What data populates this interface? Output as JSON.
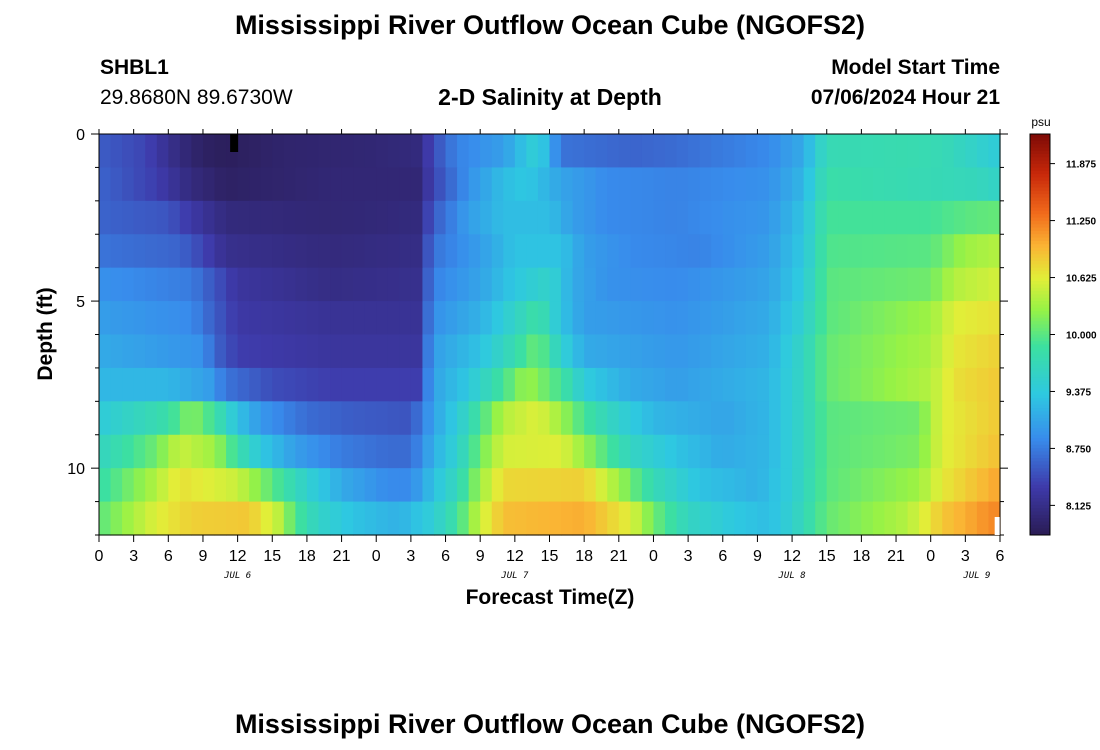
{
  "header": {
    "title": "Mississippi River Outflow Ocean Cube (NGOFS2)",
    "station_id": "SHBL1",
    "station_coords": "29.8680N  89.6730W",
    "subtitle": "2-D Salinity at Depth",
    "model_start_label": "Model Start Time",
    "model_start_value": "07/06/2024 Hour 21"
  },
  "footer": {
    "title": "Mississippi River Outflow Ocean Cube (NGOFS2)"
  },
  "chart_data": {
    "type": "heatmap",
    "title": "2-D Salinity at Depth",
    "xlabel": "Forecast Time(Z)",
    "ylabel": "Depth (ft)",
    "colorbar_unit": "psu",
    "colorbar_ticks": [
      "11.875",
      "11.250",
      "10.625",
      "10.000",
      "9.375",
      "8.750",
      "8.125"
    ],
    "clim": [
      7.8,
      12.2
    ],
    "x_hours_range": [
      0,
      78
    ],
    "x_tick_labels": [
      "0",
      "3",
      "6",
      "9",
      "12",
      "15",
      "18",
      "21",
      "0",
      "3",
      "6",
      "9",
      "12",
      "15",
      "18",
      "21",
      "0",
      "3",
      "6",
      "9",
      "12",
      "15",
      "18",
      "21",
      "0",
      "3",
      "6"
    ],
    "date_labels": [
      {
        "label": "JUL 6",
        "hour": 12
      },
      {
        "label": "JUL 7",
        "hour": 36
      },
      {
        "label": "JUL 8",
        "hour": 60
      },
      {
        "label": "JUL 9",
        "hour": 76
      }
    ],
    "y_range": [
      0,
      12
    ],
    "y_tick_labels": [
      {
        "value": 0,
        "label": "0"
      },
      {
        "value": 5,
        "label": "5"
      },
      {
        "value": 10,
        "label": "10"
      }
    ],
    "depth_rows": [
      0.5,
      1.5,
      2.5,
      3.5,
      4.5,
      5.5,
      6.5,
      7.5,
      8.5,
      9.5,
      10.5,
      11.5
    ],
    "salinity_profiles": [
      {
        "depth": 0.5,
        "points": [
          [
            0,
            8.55
          ],
          [
            4,
            8.4
          ],
          [
            7,
            8.05
          ],
          [
            9,
            7.9
          ],
          [
            11,
            7.85
          ],
          [
            16,
            7.95
          ],
          [
            24,
            8.0
          ],
          [
            27.5,
            8.05
          ],
          [
            29,
            8.45
          ],
          [
            31,
            8.8
          ],
          [
            35,
            9.0
          ],
          [
            36.5,
            9.25
          ],
          [
            38,
            9.5
          ],
          [
            40,
            8.7
          ],
          [
            46,
            8.6
          ],
          [
            50,
            8.65
          ],
          [
            58,
            8.85
          ],
          [
            61,
            9.1
          ],
          [
            63,
            9.7
          ],
          [
            70,
            9.75
          ],
          [
            73,
            9.7
          ],
          [
            78,
            9.4
          ]
        ]
      },
      {
        "depth": 1.5,
        "points": [
          [
            0,
            8.6
          ],
          [
            5,
            8.35
          ],
          [
            8,
            8.05
          ],
          [
            11,
            7.9
          ],
          [
            20,
            8.0
          ],
          [
            27.5,
            8.0
          ],
          [
            29,
            8.4
          ],
          [
            32,
            8.9
          ],
          [
            35,
            9.25
          ],
          [
            37,
            9.35
          ],
          [
            40,
            9.05
          ],
          [
            44,
            8.85
          ],
          [
            50,
            8.8
          ],
          [
            58,
            8.9
          ],
          [
            61,
            9.2
          ],
          [
            63,
            9.8
          ],
          [
            72,
            9.7
          ],
          [
            76,
            9.65
          ],
          [
            78,
            9.55
          ]
        ]
      },
      {
        "depth": 2.5,
        "points": [
          [
            0,
            8.6
          ],
          [
            6,
            8.5
          ],
          [
            8,
            8.3
          ],
          [
            11,
            8.05
          ],
          [
            20,
            8.0
          ],
          [
            27.5,
            8.05
          ],
          [
            29,
            8.55
          ],
          [
            32,
            9.0
          ],
          [
            35,
            9.25
          ],
          [
            39,
            9.25
          ],
          [
            41,
            9.0
          ],
          [
            44,
            8.85
          ],
          [
            50,
            8.8
          ],
          [
            58,
            8.95
          ],
          [
            61,
            9.3
          ],
          [
            63,
            9.9
          ],
          [
            72,
            9.9
          ],
          [
            75,
            10.0
          ],
          [
            78,
            10.05
          ]
        ]
      },
      {
        "depth": 3.5,
        "points": [
          [
            0,
            8.7
          ],
          [
            7,
            8.6
          ],
          [
            9,
            8.4
          ],
          [
            11,
            8.15
          ],
          [
            20,
            8.05
          ],
          [
            27.5,
            8.1
          ],
          [
            29,
            8.7
          ],
          [
            33,
            9.0
          ],
          [
            36,
            9.3
          ],
          [
            40,
            9.3
          ],
          [
            42,
            9.0
          ],
          [
            46,
            8.85
          ],
          [
            52,
            8.8
          ],
          [
            58,
            9.0
          ],
          [
            61,
            9.35
          ],
          [
            63,
            9.95
          ],
          [
            72,
            10.0
          ],
          [
            75,
            10.3
          ],
          [
            78,
            10.4
          ]
        ]
      },
      {
        "depth": 4.5,
        "points": [
          [
            0,
            8.9
          ],
          [
            8,
            8.75
          ],
          [
            10,
            8.5
          ],
          [
            12,
            8.25
          ],
          [
            20,
            8.1
          ],
          [
            27.5,
            8.15
          ],
          [
            29,
            8.8
          ],
          [
            33,
            9.05
          ],
          [
            36,
            9.35
          ],
          [
            39,
            9.55
          ],
          [
            41,
            9.1
          ],
          [
            44,
            8.9
          ],
          [
            50,
            8.85
          ],
          [
            58,
            9.05
          ],
          [
            61,
            9.4
          ],
          [
            63,
            10.0
          ],
          [
            72,
            10.1
          ],
          [
            74,
            10.4
          ],
          [
            78,
            10.55
          ]
        ]
      },
      {
        "depth": 5.5,
        "points": [
          [
            0,
            9.0
          ],
          [
            8,
            8.85
          ],
          [
            10,
            8.55
          ],
          [
            12,
            8.3
          ],
          [
            20,
            8.2
          ],
          [
            27.5,
            8.2
          ],
          [
            29,
            8.9
          ],
          [
            33,
            9.15
          ],
          [
            36,
            9.55
          ],
          [
            38,
            9.85
          ],
          [
            40,
            9.3
          ],
          [
            42,
            9.0
          ],
          [
            50,
            8.9
          ],
          [
            58,
            9.1
          ],
          [
            61,
            9.5
          ],
          [
            63,
            10.0
          ],
          [
            72,
            10.3
          ],
          [
            74,
            10.6
          ],
          [
            78,
            10.7
          ]
        ]
      },
      {
        "depth": 6.5,
        "points": [
          [
            0,
            9.1
          ],
          [
            9,
            8.9
          ],
          [
            10,
            8.6
          ],
          [
            12,
            8.35
          ],
          [
            20,
            8.25
          ],
          [
            27.5,
            8.25
          ],
          [
            29,
            9.0
          ],
          [
            33,
            9.3
          ],
          [
            36,
            9.75
          ],
          [
            38,
            10.1
          ],
          [
            40,
            9.5
          ],
          [
            42,
            9.1
          ],
          [
            50,
            8.95
          ],
          [
            58,
            9.15
          ],
          [
            61,
            9.6
          ],
          [
            63,
            10.05
          ],
          [
            72,
            10.35
          ],
          [
            74,
            10.65
          ],
          [
            78,
            10.8
          ]
        ]
      },
      {
        "depth": 7.5,
        "points": [
          [
            0,
            9.2
          ],
          [
            6,
            9.2
          ],
          [
            9.5,
            9.0
          ],
          [
            11,
            8.7
          ],
          [
            15,
            8.45
          ],
          [
            20,
            8.35
          ],
          [
            27.5,
            8.35
          ],
          [
            29,
            9.05
          ],
          [
            32,
            9.35
          ],
          [
            35,
            9.9
          ],
          [
            37,
            10.3
          ],
          [
            40,
            9.9
          ],
          [
            42,
            9.4
          ],
          [
            46,
            9.1
          ],
          [
            50,
            9.0
          ],
          [
            58,
            9.2
          ],
          [
            61,
            9.6
          ],
          [
            63,
            10.05
          ],
          [
            72,
            10.4
          ],
          [
            74,
            10.7
          ],
          [
            78,
            10.85
          ]
        ]
      },
      {
        "depth": 8.5,
        "points": [
          [
            0,
            9.4
          ],
          [
            6,
            9.8
          ],
          [
            8,
            10.2
          ],
          [
            10,
            9.85
          ],
          [
            12,
            9.3
          ],
          [
            14,
            8.95
          ],
          [
            18,
            8.65
          ],
          [
            22,
            8.55
          ],
          [
            27,
            8.5
          ],
          [
            29,
            9.05
          ],
          [
            31,
            9.4
          ],
          [
            33,
            9.9
          ],
          [
            35,
            10.4
          ],
          [
            38,
            10.6
          ],
          [
            40,
            10.3
          ],
          [
            42,
            9.9
          ],
          [
            45,
            9.5
          ],
          [
            48,
            9.2
          ],
          [
            54,
            9.05
          ],
          [
            58,
            9.2
          ],
          [
            61,
            9.6
          ],
          [
            63,
            10.0
          ],
          [
            71,
            10.1
          ],
          [
            73,
            10.6
          ],
          [
            78,
            10.85
          ]
        ]
      },
      {
        "depth": 9.5,
        "points": [
          [
            0,
            9.6
          ],
          [
            5,
            10.1
          ],
          [
            7,
            10.5
          ],
          [
            10,
            10.3
          ],
          [
            12,
            9.8
          ],
          [
            14,
            9.35
          ],
          [
            17,
            9.0
          ],
          [
            21,
            8.75
          ],
          [
            25,
            8.65
          ],
          [
            27,
            8.65
          ],
          [
            29,
            9.15
          ],
          [
            31,
            9.5
          ],
          [
            33,
            10.1
          ],
          [
            35,
            10.55
          ],
          [
            40,
            10.6
          ],
          [
            43,
            10.1
          ],
          [
            46,
            9.6
          ],
          [
            50,
            9.3
          ],
          [
            54,
            9.1
          ],
          [
            58,
            9.2
          ],
          [
            61,
            9.6
          ],
          [
            63,
            10.0
          ],
          [
            71,
            10.15
          ],
          [
            73,
            10.6
          ],
          [
            78,
            10.9
          ]
        ]
      },
      {
        "depth": 10.5,
        "points": [
          [
            0,
            9.8
          ],
          [
            5,
            10.4
          ],
          [
            7,
            10.7
          ],
          [
            12,
            10.5
          ],
          [
            15,
            10.0
          ],
          [
            18,
            9.5
          ],
          [
            21,
            9.1
          ],
          [
            25,
            8.85
          ],
          [
            27,
            8.85
          ],
          [
            29,
            9.3
          ],
          [
            31,
            9.65
          ],
          [
            33,
            10.3
          ],
          [
            35,
            10.75
          ],
          [
            42,
            10.8
          ],
          [
            45,
            10.3
          ],
          [
            48,
            9.7
          ],
          [
            52,
            9.3
          ],
          [
            57,
            9.15
          ],
          [
            60,
            9.45
          ],
          [
            63,
            10.0
          ],
          [
            71,
            10.3
          ],
          [
            73,
            10.65
          ],
          [
            78,
            11.05
          ]
        ]
      },
      {
        "depth": 11.5,
        "points": [
          [
            0,
            10.0
          ],
          [
            5,
            10.6
          ],
          [
            8,
            10.8
          ],
          [
            13,
            10.85
          ],
          [
            15.5,
            10.45
          ],
          [
            17,
            9.95
          ],
          [
            19,
            9.55
          ],
          [
            22,
            9.3
          ],
          [
            26,
            9.15
          ],
          [
            29,
            9.45
          ],
          [
            31,
            9.85
          ],
          [
            33,
            10.5
          ],
          [
            35,
            10.9
          ],
          [
            42,
            11.0
          ],
          [
            46,
            10.6
          ],
          [
            48,
            10.1
          ],
          [
            51,
            9.6
          ],
          [
            55,
            9.35
          ],
          [
            58,
            9.25
          ],
          [
            60,
            9.5
          ],
          [
            63,
            10.05
          ],
          [
            70,
            10.4
          ],
          [
            73,
            10.85
          ],
          [
            77,
            11.15
          ],
          [
            78,
            11.2
          ]
        ]
      }
    ],
    "markers": [
      {
        "type": "black-bar",
        "hour": 11.7,
        "depth": 0.3
      },
      {
        "type": "white-bar",
        "hour": 77.8,
        "depth": 11.7
      }
    ]
  }
}
